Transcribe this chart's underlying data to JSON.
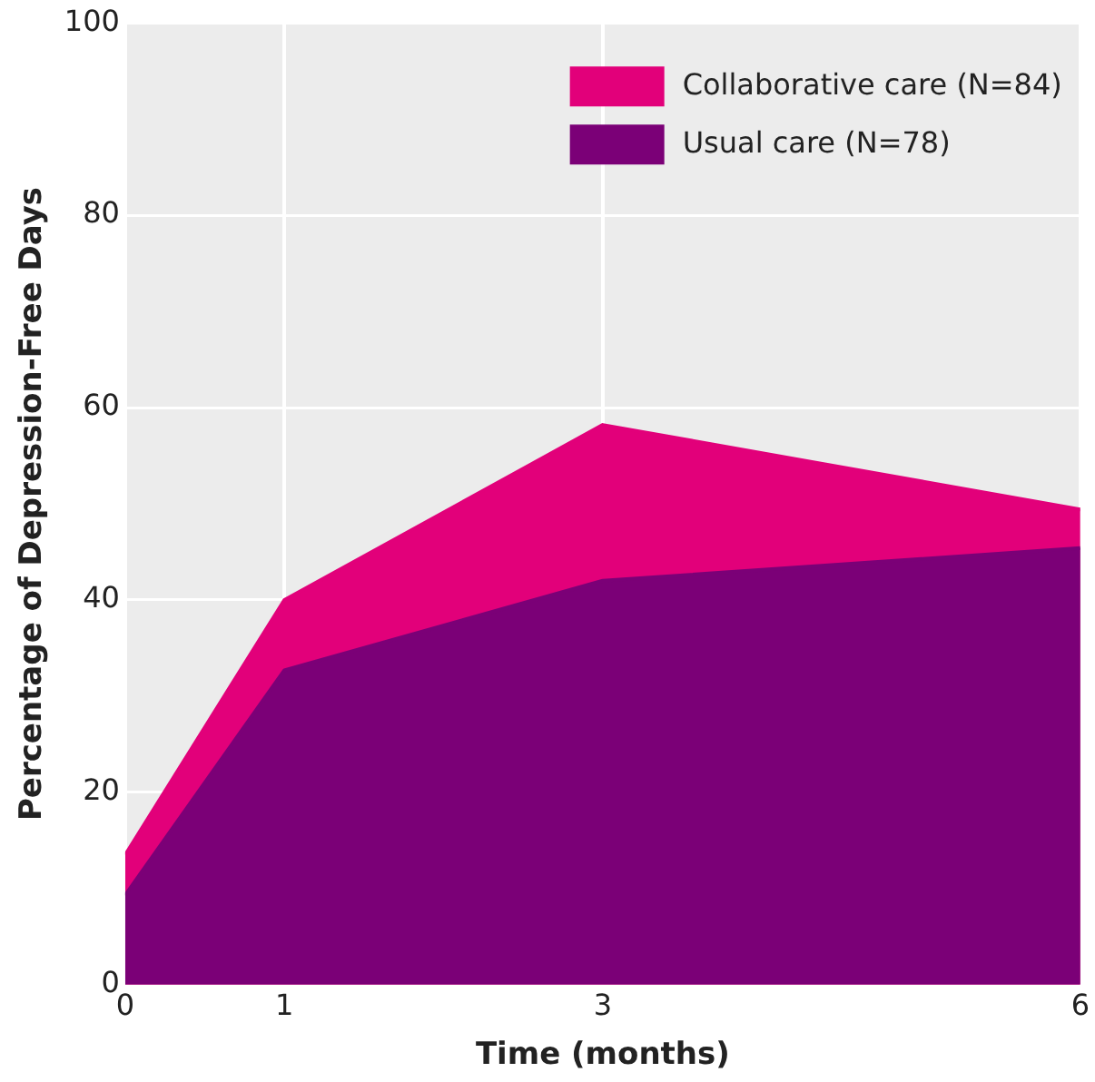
{
  "chart_data": {
    "type": "area",
    "xlabel": "Time (months)",
    "ylabel": "Percentage of Depression-Free Days",
    "x": [
      0,
      1,
      3,
      6
    ],
    "series": [
      {
        "name": "Collaborative care (N=84)",
        "color": "#e2007a",
        "values": [
          13.5,
          40,
          58.2,
          49.4
        ]
      },
      {
        "name": "Usual care (N=78)",
        "color": "#7b0077",
        "values": [
          9.3,
          32.7,
          42,
          45.4
        ]
      }
    ],
    "xlim": [
      0,
      6
    ],
    "xticks": [
      0,
      1,
      3,
      6
    ],
    "ylim": [
      0,
      100
    ],
    "yticks": [
      0,
      20,
      40,
      60,
      80,
      100
    ],
    "grid": true,
    "legend": "top right"
  }
}
